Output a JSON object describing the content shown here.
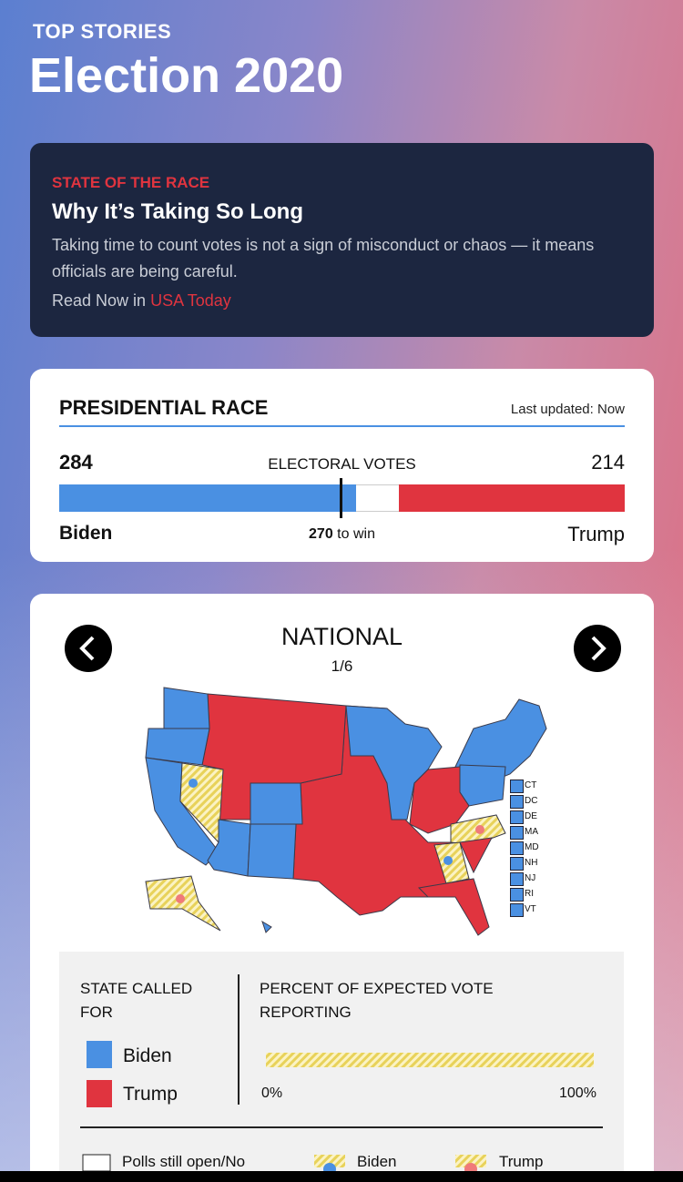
{
  "header": {
    "kicker": "TOP STORIES",
    "title": "Election 2020"
  },
  "feature": {
    "kicker": "STATE OF THE RACE",
    "title": "Why It’s Taking So Long",
    "body": "Taking time to count votes is not a sign of misconduct or chaos — it means officials are being careful.",
    "cta": "Read Now in",
    "source": "USA Today"
  },
  "race": {
    "title": "PRESIDENTIAL RACE",
    "updated": "Last updated: Now",
    "label": "ELECTORAL VOTES",
    "left": {
      "votes": 284,
      "name": "Biden"
    },
    "right": {
      "votes": 214,
      "name": "Trump"
    },
    "threshold": 270,
    "threshold_text": "to win"
  },
  "map": {
    "title": "NATIONAL",
    "page": "1/6",
    "small_states": [
      "CT",
      "DC",
      "DE",
      "MA",
      "MD",
      "NH",
      "NJ",
      "RI",
      "VT"
    ]
  },
  "legend": {
    "called_title": "STATE CALLED FOR",
    "called": [
      "Biden",
      "Trump"
    ],
    "reporting_title": "PERCENT OF EXPECTED VOTE REPORTING",
    "min": "0%",
    "max": "100%",
    "bottom": [
      "Polls still open/No",
      "Biden",
      "Trump"
    ]
  }
}
